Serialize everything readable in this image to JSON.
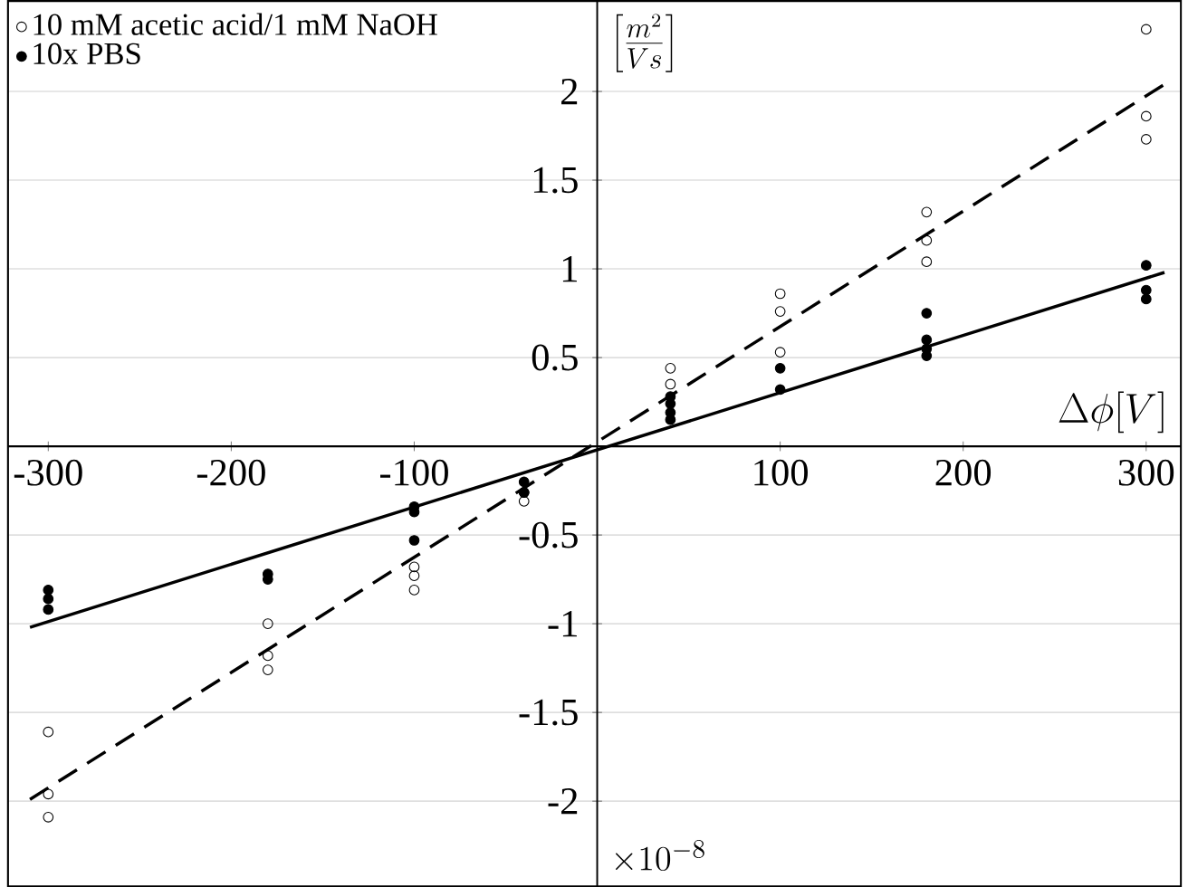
{
  "chart_data": {
    "type": "scatter",
    "xlabel": "\\Delta\\phi[V]",
    "ylabel": "\\left[\\frac{m^2}{V s}\\right]",
    "annotations": [
      "\\times 10^{-8}"
    ],
    "xlim": [
      -322,
      319
    ],
    "ylim": [
      -2.48,
      2.51
    ],
    "xticks": [
      -300,
      -200,
      -100,
      100,
      200,
      300
    ],
    "yticks": [
      -2,
      -1.5,
      -1,
      -0.5,
      0.5,
      1,
      1.5,
      2
    ],
    "grid": "y",
    "legend": "top left",
    "series": [
      {
        "name": "10 mM acetic acid/1 mM NaOH",
        "color": "#000000",
        "marker": "open circle",
        "x": [
          -300,
          -300,
          -300,
          -180,
          -180,
          -180,
          -100,
          -100,
          -100,
          -40,
          -40,
          40,
          40,
          100,
          100,
          100,
          180,
          180,
          180,
          300,
          300,
          300
        ],
        "values": [
          -1.61,
          -1.96,
          -2.09,
          -1.0,
          -1.18,
          -1.26,
          -0.68,
          -0.73,
          -0.81,
          -0.26,
          -0.31,
          0.44,
          0.35,
          0.86,
          0.76,
          0.53,
          1.32,
          1.16,
          1.04,
          2.35,
          1.86,
          1.73
        ]
      },
      {
        "name": "10x PBS",
        "color": "#000000",
        "marker": "circle",
        "x": [
          -300,
          -300,
          -300,
          -180,
          -180,
          -100,
          -100,
          -100,
          -40,
          -40,
          40,
          40,
          40,
          40,
          100,
          100,
          180,
          180,
          180,
          180,
          300,
          300,
          300
        ],
        "values": [
          -0.81,
          -0.86,
          -0.92,
          -0.72,
          -0.75,
          -0.34,
          -0.37,
          -0.53,
          -0.2,
          -0.26,
          0.28,
          0.24,
          0.19,
          0.15,
          0.44,
          0.32,
          0.75,
          0.6,
          0.55,
          0.51,
          1.02,
          0.88,
          0.83
        ]
      },
      {
        "type": "line",
        "color": "#000000",
        "marker": "none",
        "line_style": "dashed",
        "x": [
          -310,
          310
        ],
        "values": [
          -1.99,
          2.04
        ]
      },
      {
        "type": "line",
        "color": "#000000",
        "marker": "none",
        "line_style": "solid",
        "x": [
          -310,
          310
        ],
        "values": [
          -1.02,
          0.98
        ]
      }
    ]
  }
}
